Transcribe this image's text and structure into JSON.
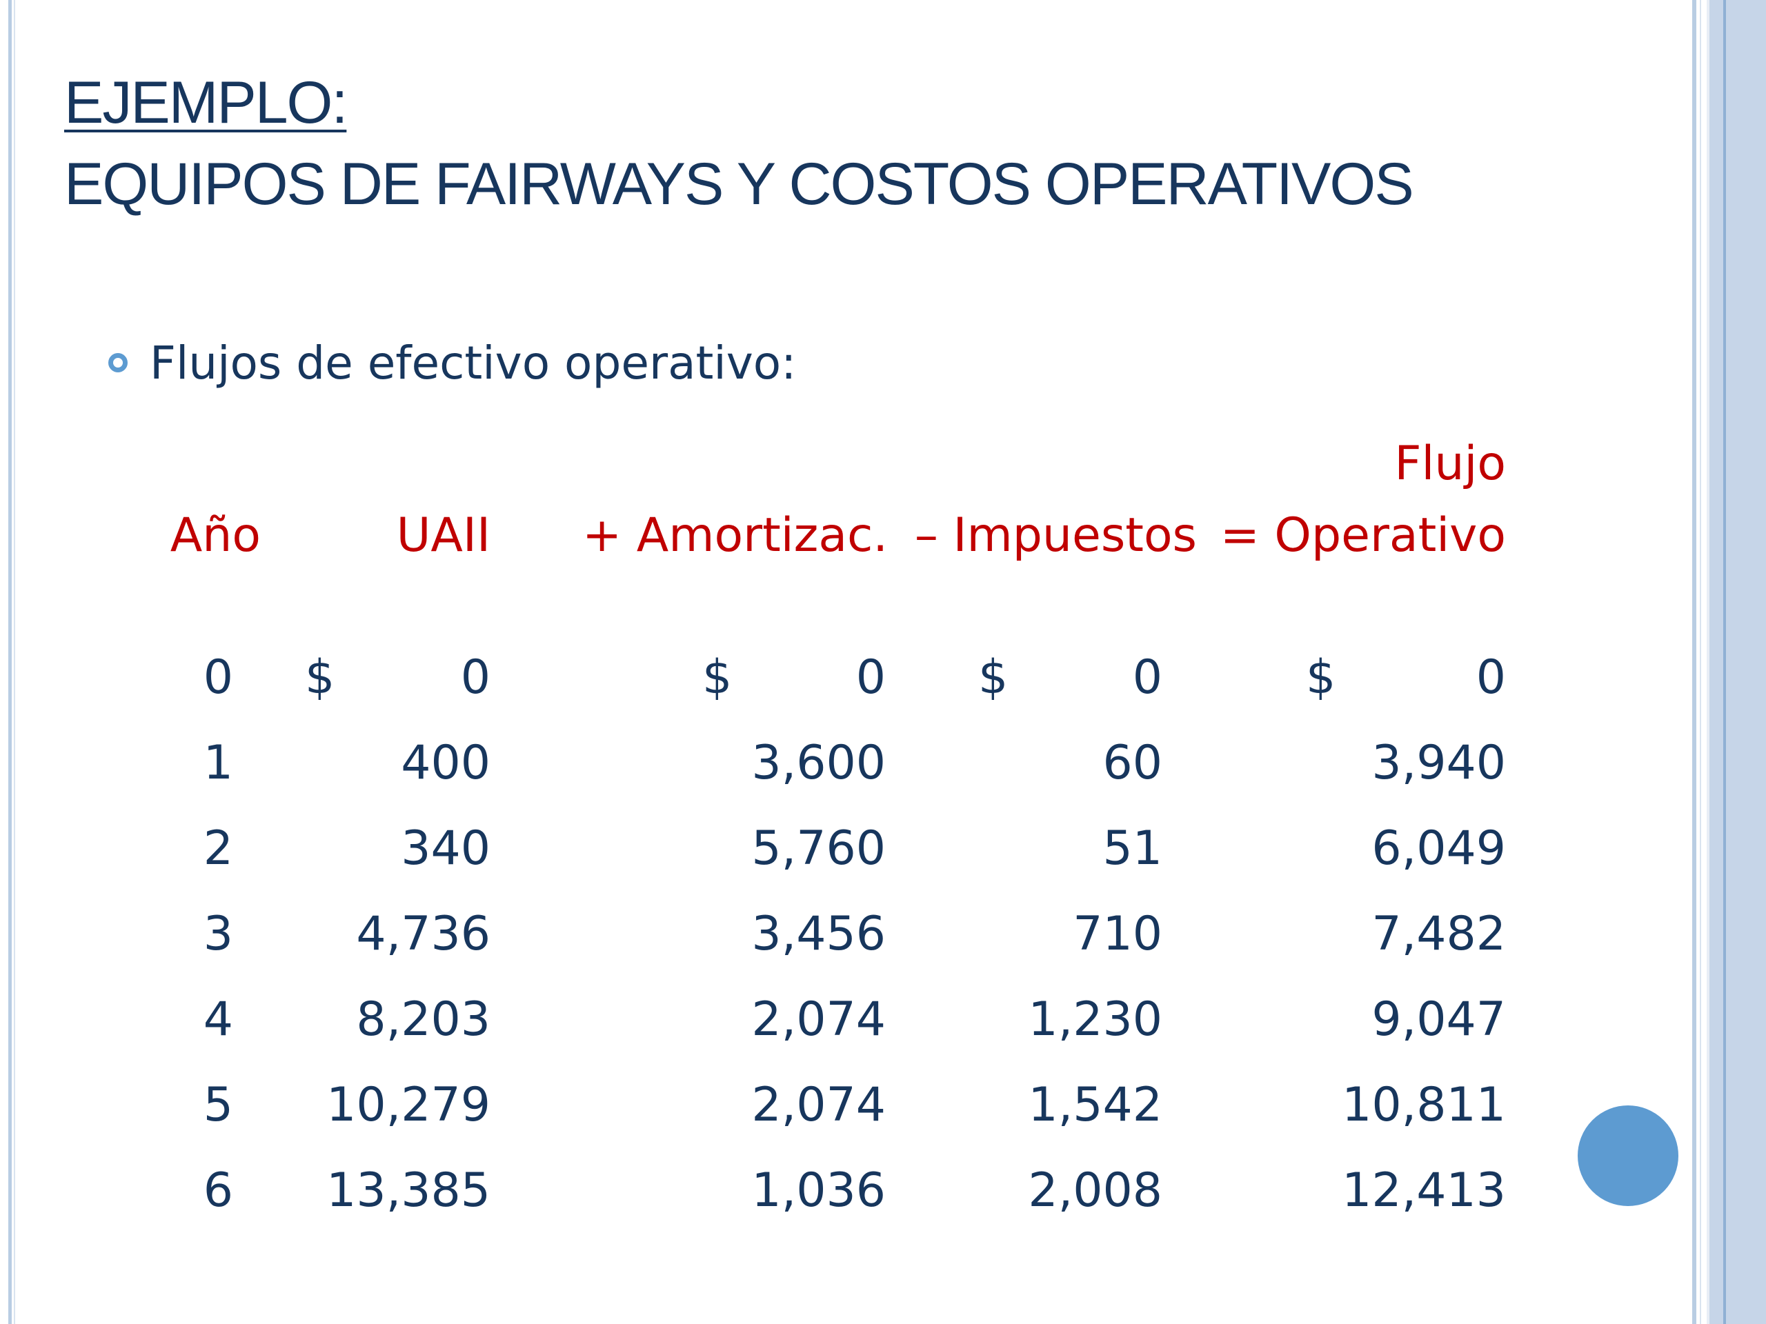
{
  "slide": {
    "title_line1": "EJEMPLO:",
    "title_line2": "EQUIPOS DE FAIRWAYS Y COSTOS OPERATIVOS",
    "bullet": "Flujos de efectivo operativo:"
  },
  "table": {
    "headers": {
      "year": "Año",
      "uaii": "UAII",
      "amort": "+ Amortizac.",
      "taxes": "– Impuestos",
      "flow_top": "Flujo",
      "flow_bottom": "= Operativo"
    },
    "currency_symbol": "$",
    "rows": [
      {
        "year": "0",
        "uaii": "0",
        "amort": "0",
        "taxes": "0",
        "flow": "0"
      },
      {
        "year": "1",
        "uaii": "400",
        "amort": "3,600",
        "taxes": "60",
        "flow": "3,940"
      },
      {
        "year": "2",
        "uaii": "340",
        "amort": "5,760",
        "taxes": "51",
        "flow": "6,049"
      },
      {
        "year": "3",
        "uaii": "4,736",
        "amort": "3,456",
        "taxes": "710",
        "flow": "7,482"
      },
      {
        "year": "4",
        "uaii": "8,203",
        "amort": "2,074",
        "taxes": "1,230",
        "flow": "9,047"
      },
      {
        "year": "5",
        "uaii": "10,279",
        "amort": "2,074",
        "taxes": "1,542",
        "flow": "10,811"
      },
      {
        "year": "6",
        "uaii": "13,385",
        "amort": "1,036",
        "taxes": "2,008",
        "flow": "12,413"
      }
    ]
  }
}
